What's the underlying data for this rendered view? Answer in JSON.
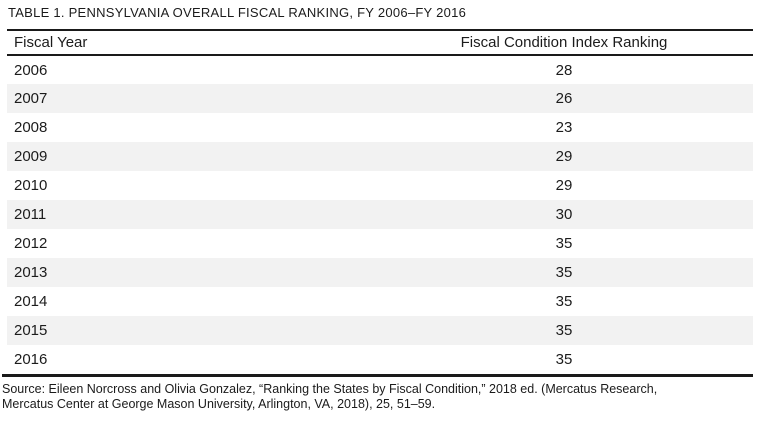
{
  "title": "TABLE 1. PENNSYLVANIA OVERALL FISCAL RANKING, FY 2006–FY 2016",
  "columns": [
    "Fiscal Year",
    "Fiscal Condition Index Ranking"
  ],
  "rows": [
    {
      "year": "2006",
      "ranking": "28"
    },
    {
      "year": "2007",
      "ranking": "26"
    },
    {
      "year": "2008",
      "ranking": "23"
    },
    {
      "year": "2009",
      "ranking": "29"
    },
    {
      "year": "2010",
      "ranking": "29"
    },
    {
      "year": "2011",
      "ranking": "30"
    },
    {
      "year": "2012",
      "ranking": "35"
    },
    {
      "year": "2013",
      "ranking": "35"
    },
    {
      "year": "2014",
      "ranking": "35"
    },
    {
      "year": "2015",
      "ranking": "35"
    },
    {
      "year": "2016",
      "ranking": "35"
    }
  ],
  "source": {
    "line1": "Source: Eileen Norcross and Olivia Gonzalez, “Ranking the States by Fiscal Condition,” 2018 ed. (Mercatus Research,",
    "line2": "Mercatus Center at George Mason University, Arlington, VA, 2018), 25, 51–59."
  },
  "colors": {
    "stripe": "#f2f2f2",
    "rule": "#1a1a1a",
    "text": "#1c1c1c",
    "background": "#ffffff"
  },
  "chart_data": {
    "type": "table",
    "title": "TABLE 1. PENNSYLVANIA OVERALL FISCAL RANKING, FY 2006–FY 2016",
    "columns": [
      "Fiscal Year",
      "Fiscal Condition Index Ranking"
    ],
    "categories": [
      "2006",
      "2007",
      "2008",
      "2009",
      "2010",
      "2011",
      "2012",
      "2013",
      "2014",
      "2015",
      "2016"
    ],
    "values": [
      28,
      26,
      23,
      29,
      29,
      30,
      35,
      35,
      35,
      35,
      35
    ]
  }
}
